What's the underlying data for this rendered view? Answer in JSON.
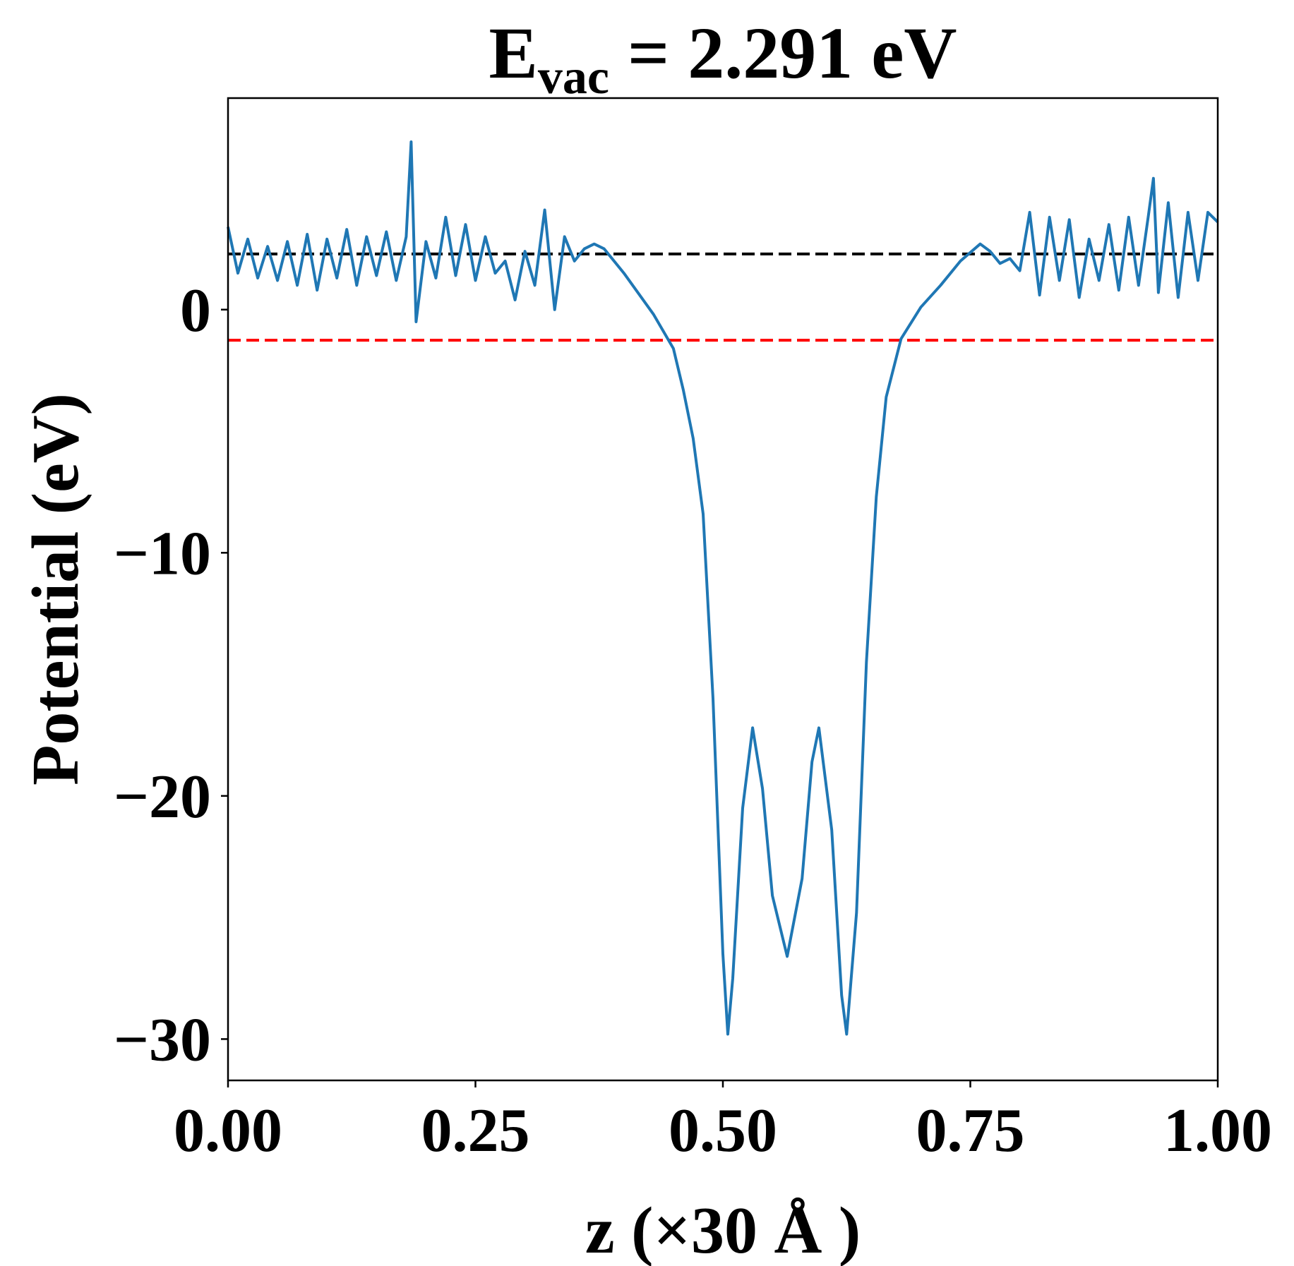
{
  "chart_data": {
    "type": "line",
    "title": {
      "main": "E",
      "subscript": "vac",
      "rest": " = 2.291 eV"
    },
    "xlabel": "z (×30 Å )",
    "ylabel": "Potential (eV)",
    "xlim": [
      0,
      1
    ],
    "ylim": [
      -31.7,
      8.7
    ],
    "xticks": [
      {
        "value": 0,
        "label": "0.00"
      },
      {
        "value": 0.25,
        "label": "0.25"
      },
      {
        "value": 0.5,
        "label": "0.50"
      },
      {
        "value": 0.75,
        "label": "0.75"
      },
      {
        "value": 1,
        "label": "1.00"
      }
    ],
    "yticks": [
      0,
      {
        "value": -10,
        "label": "−10"
      },
      {
        "value": -20,
        "label": "−20"
      },
      {
        "value": -30,
        "label": "−30"
      }
    ],
    "hlines": [
      {
        "value": 2.291,
        "color": "#000000"
      },
      {
        "value": -1.26,
        "color": "#ff0000"
      }
    ],
    "series": [
      {
        "color": "#1f77b4",
        "x": [
          0,
          0.01,
          0.02,
          0.03,
          0.04,
          0.05,
          0.06,
          0.07,
          0.08,
          0.09,
          0.1,
          0.11,
          0.12,
          0.13,
          0.14,
          0.15,
          0.16,
          0.17,
          0.18,
          0.185,
          0.19,
          0.2,
          0.21,
          0.22,
          0.23,
          0.24,
          0.25,
          0.26,
          0.27,
          0.28,
          0.29,
          0.3,
          0.31,
          0.32,
          0.33,
          0.34,
          0.35,
          0.36,
          0.37,
          0.38,
          0.4,
          0.43,
          0.45,
          0.46,
          0.47,
          0.48,
          0.49,
          0.5,
          0.505,
          0.51,
          0.52,
          0.53,
          0.54,
          0.55,
          0.565,
          0.58,
          0.59,
          0.597,
          0.61,
          0.62,
          0.625,
          0.635,
          0.645,
          0.655,
          0.665,
          0.68,
          0.7,
          0.72,
          0.74,
          0.76,
          0.77,
          0.78,
          0.79,
          0.8,
          0.81,
          0.82,
          0.83,
          0.84,
          0.85,
          0.86,
          0.87,
          0.88,
          0.89,
          0.9,
          0.91,
          0.92,
          0.93,
          0.935,
          0.94,
          0.95,
          0.96,
          0.97,
          0.98,
          0.99,
          1.0
        ],
        "values": [
          3.4,
          1.5,
          2.9,
          1.3,
          2.6,
          1.2,
          2.8,
          1.0,
          3.1,
          0.8,
          2.9,
          1.3,
          3.3,
          1.0,
          3.0,
          1.4,
          3.2,
          1.2,
          3.0,
          6.9,
          -0.5,
          2.8,
          1.3,
          3.8,
          1.4,
          3.5,
          1.2,
          3.0,
          1.5,
          2.0,
          0.4,
          2.4,
          1.0,
          4.1,
          0.0,
          3.0,
          2.0,
          2.5,
          2.7,
          2.5,
          1.5,
          -0.2,
          -1.6,
          -3.3,
          -5.3,
          -8.4,
          -16,
          -26.5,
          -29.8,
          -27.5,
          -20.5,
          -17.2,
          -19.7,
          -24.1,
          -26.6,
          -23.4,
          -18.6,
          -17.2,
          -21.4,
          -28.2,
          -29.8,
          -24.8,
          -14.5,
          -7.7,
          -3.6,
          -1.2,
          0.1,
          1.0,
          2.0,
          2.7,
          2.4,
          1.9,
          2.1,
          1.6,
          4.0,
          0.6,
          3.8,
          1.2,
          3.7,
          0.5,
          2.9,
          1.2,
          3.5,
          0.8,
          3.8,
          1.0,
          3.9,
          5.4,
          0.7,
          4.4,
          0.5,
          4.0,
          1.2,
          4.0,
          3.6
        ]
      }
    ]
  }
}
